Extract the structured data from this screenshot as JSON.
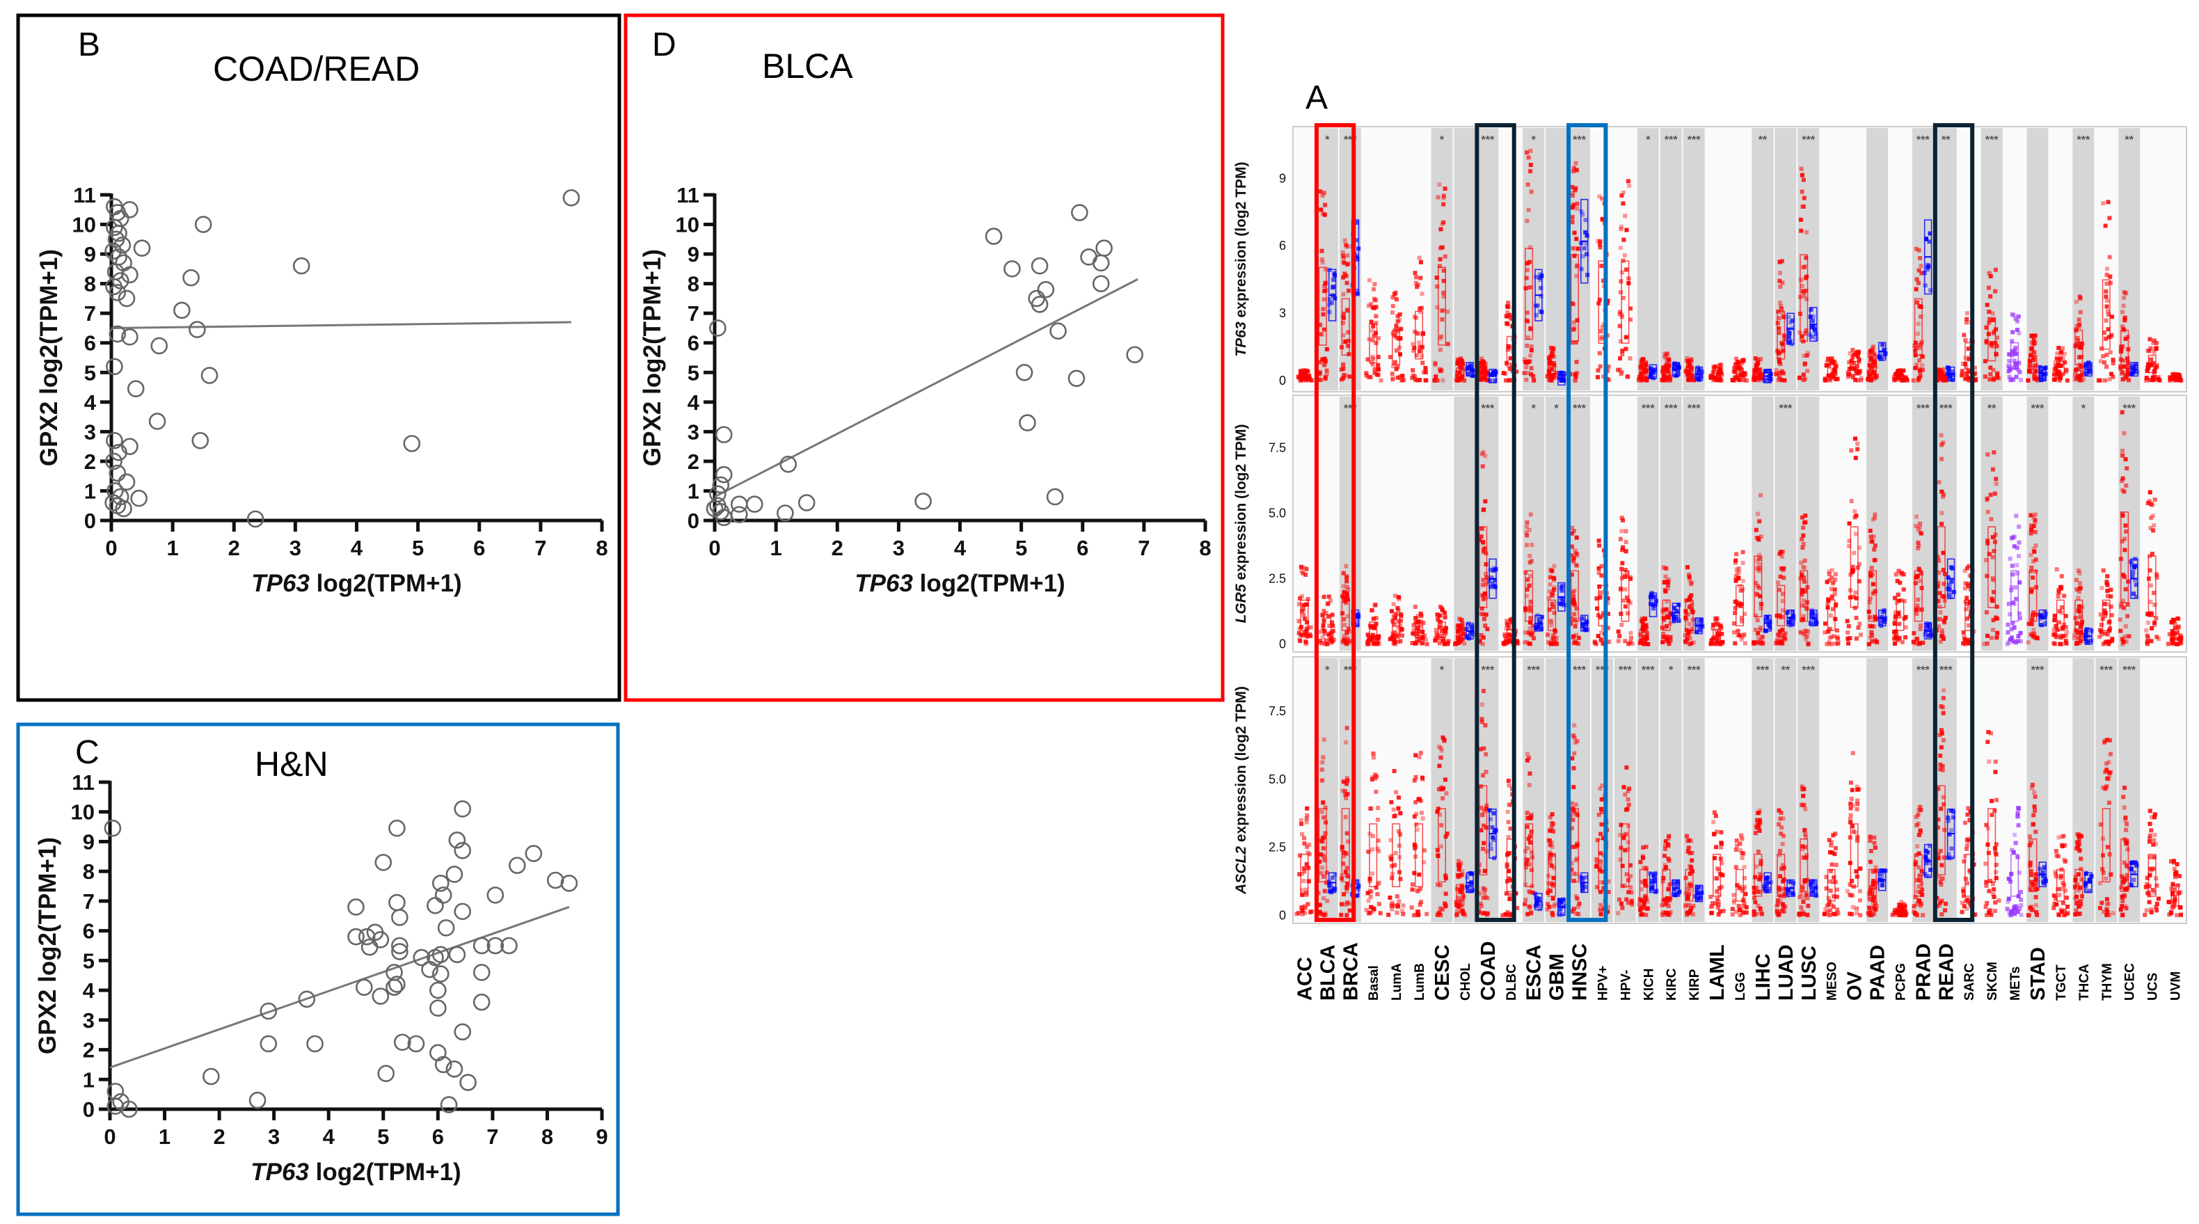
{
  "panels": {
    "B": {
      "letter": "B",
      "title": "COAD/READ",
      "frame_color": "#000000"
    },
    "C": {
      "letter": "C",
      "title": "H&N",
      "frame_color": "#0070C0"
    },
    "D": {
      "letter": "D",
      "title": "BLCA",
      "frame_color": "#FF0000"
    },
    "A": {
      "letter": "A"
    }
  },
  "chart_data": [
    {
      "panel": "A",
      "type": "box",
      "categories": [
        "ACC",
        "BLCA",
        "BRCA",
        "Basal",
        "LumA",
        "LumB",
        "CESC",
        "CHOL",
        "COAD",
        "DLBC",
        "ESCA",
        "GBM",
        "HNSC",
        "HPV+",
        "HPV-",
        "KICH",
        "KIRC",
        "KIRP",
        "LAML",
        "LGG",
        "LIHC",
        "LUAD",
        "LUSC",
        "MESO",
        "OV",
        "PAAD",
        "PCPG",
        "PRAD",
        "READ",
        "SARC",
        "SKCM",
        "METs",
        "STAD",
        "TGCT",
        "THCA",
        "THYM",
        "UCEC",
        "UCS",
        "UVM"
      ],
      "highlights": [
        {
          "category": "BLCA",
          "color": "#FF0000"
        },
        {
          "category": "COAD",
          "color": "#0B2233"
        },
        {
          "category": "HNSC",
          "color": "#0070C0"
        },
        {
          "category": "READ",
          "color": "#0B2233"
        }
      ],
      "colors": {
        "tumor": "#FF0000",
        "normal": "#0000FF",
        "metastatic": "#9933FF"
      },
      "rows": [
        {
          "ylabel_gene": "TP63",
          "ylabel_unit": "expression (log2 TPM)",
          "yticks": [
            "0",
            "3",
            "6",
            "9"
          ],
          "ytick_values": [
            0,
            3,
            6,
            9
          ],
          "ylim": [
            -0.5,
            11.3
          ],
          "significance": {
            "BLCA": "*",
            "BRCA": "***",
            "CESC": "*",
            "COAD": "***",
            "ESCA": "*",
            "HNSC": "***",
            "KICH": "*",
            "KIRC": "***",
            "KIRP": "***",
            "LIHC": "**",
            "LUSC": "***",
            "PRAD": "***",
            "READ": "**",
            "SKCM": "***",
            "THCA": "***",
            "UCEC": "**"
          },
          "tumor": [
            0.5,
            9,
            6.5,
            4.5,
            4,
            5.5,
            9,
            1,
            1,
            3.5,
            10.5,
            1.5,
            10,
            9.5,
            9.5,
            1,
            1.2,
            1,
            0.8,
            1,
            1,
            5.5,
            10,
            1,
            1.5,
            1.5,
            0.5,
            6.5,
            0.5,
            3,
            5,
            3,
            2,
            1.5,
            4,
            8,
            4,
            2,
            0.3
          ],
          "normal": [
            null,
            3.8,
            5.5,
            null,
            null,
            null,
            null,
            0.5,
            0.2,
            null,
            3.8,
            0.1,
            6.2,
            null,
            null,
            0.4,
            0.5,
            0.3,
            null,
            null,
            0.2,
            2.3,
            2.5,
            null,
            null,
            1.3,
            null,
            5.5,
            0.3,
            null,
            null,
            null,
            0.3,
            null,
            0.5,
            null,
            0.5,
            null,
            null
          ]
        },
        {
          "ylabel_gene": "LGR5",
          "ylabel_unit": "expression (log2 TPM)",
          "yticks": [
            "0",
            "2.5",
            "5.0",
            "7.5"
          ],
          "ytick_values": [
            0,
            2.5,
            5,
            7.5
          ],
          "ylim": [
            -0.3,
            9.5
          ],
          "significance": {
            "BRCA": "***",
            "COAD": "***",
            "ESCA": "*",
            "GBM": "*",
            "HNSC": "***",
            "KICH": "***",
            "KIRC": "***",
            "KIRP": "***",
            "LUAD": "***",
            "PRAD": "***",
            "READ": "***",
            "SKCM": "**",
            "STAD": "***",
            "THCA": "*",
            "UCEC": "***"
          },
          "tumor": [
            3,
            2,
            3,
            1.5,
            2,
            1.5,
            1.5,
            1,
            8,
            1,
            5,
            3,
            5,
            4,
            5,
            1,
            3,
            3,
            1,
            4,
            6,
            4,
            5,
            3,
            8,
            5,
            3,
            5,
            8,
            3,
            8,
            5,
            5,
            3,
            3,
            3,
            9,
            6,
            1
          ],
          "normal": [
            null,
            null,
            1,
            null,
            null,
            null,
            null,
            0.5,
            2.5,
            null,
            0.8,
            1.8,
            0.8,
            null,
            null,
            1.5,
            1.2,
            0.7,
            null,
            null,
            0.8,
            1,
            1,
            null,
            null,
            1,
            null,
            0.5,
            2.5,
            null,
            null,
            null,
            1,
            null,
            0.3,
            null,
            2.5,
            null,
            null
          ]
        },
        {
          "ylabel_gene": "ASCL2",
          "ylabel_unit": "expression (log2 TPM)",
          "yticks": [
            "0",
            "2.5",
            "5.0",
            "7.5"
          ],
          "ytick_values": [
            0,
            2.5,
            5,
            7.5
          ],
          "ylim": [
            -0.3,
            9.5
          ],
          "significance": {
            "BLCA": "*",
            "BRCA": "***",
            "CESC": "*",
            "COAD": "***",
            "ESCA": "***",
            "HNSC": "***",
            "HPV+": "***",
            "HPV-": "***",
            "KICH": "***",
            "KIRC": "*",
            "KIRP": "***",
            "LIHC": "***",
            "LUAD": "**",
            "LUSC": "***",
            "PRAD": "***",
            "READ": "***",
            "STAD": "***",
            "THYM": "***",
            "UCEC": "***"
          },
          "tumor": [
            4,
            7,
            7,
            6,
            6,
            6,
            7,
            2,
            8.5,
            5,
            6,
            4,
            7,
            5,
            6,
            3,
            3,
            3,
            4,
            3,
            4,
            4,
            5,
            3,
            6,
            3,
            0.5,
            4,
            8.5,
            4,
            7,
            4,
            5,
            3,
            3,
            7,
            5,
            4,
            2
          ],
          "normal": [
            null,
            1.2,
            1,
            null,
            null,
            null,
            null,
            1.2,
            3,
            null,
            0.5,
            0.3,
            1.2,
            null,
            null,
            1.2,
            1,
            0.8,
            null,
            null,
            1.2,
            1,
            1,
            null,
            null,
            1.3,
            null,
            2,
            3,
            null,
            null,
            null,
            1.5,
            null,
            1.2,
            null,
            1.5,
            null,
            null
          ]
        }
      ]
    },
    {
      "panel": "B",
      "type": "scatter",
      "xlabel_gene": "TP63",
      "xlabel_unit": "log2(TPM+1)",
      "ylabel": "GPX2 log2(TPM+1)",
      "xlim": [
        0,
        8
      ],
      "ylim": [
        0,
        11
      ],
      "xticks": [
        "0",
        "1",
        "2",
        "3",
        "4",
        "5",
        "6",
        "7",
        "8"
      ],
      "yticks": [
        "0",
        "1",
        "2",
        "3",
        "4",
        "5",
        "6",
        "7",
        "8",
        "9",
        "10",
        "11"
      ],
      "points": [
        [
          7.5,
          10.9
        ],
        [
          1.5,
          10
        ],
        [
          3.1,
          8.6
        ],
        [
          1.3,
          8.2
        ],
        [
          1.15,
          7.1
        ],
        [
          1.4,
          6.45
        ],
        [
          0.78,
          5.9
        ],
        [
          1.6,
          4.9
        ],
        [
          0.4,
          4.45
        ],
        [
          0.75,
          3.35
        ],
        [
          1.45,
          2.7
        ],
        [
          4.9,
          2.6
        ],
        [
          2.35,
          0.05
        ],
        [
          0.5,
          9.2
        ],
        [
          0.3,
          10.5
        ],
        [
          0.45,
          0.75
        ],
        [
          0.25,
          1.3
        ],
        [
          0.3,
          2.5
        ],
        [
          0.3,
          6.2
        ],
        [
          0.25,
          7.5
        ],
        [
          0.3,
          8.3
        ],
        [
          0.05,
          5.2
        ],
        [
          0.1,
          6.3
        ],
        [
          0.05,
          10.6
        ],
        [
          0.1,
          10.4
        ],
        [
          0.15,
          10.2
        ],
        [
          0.05,
          9.9
        ],
        [
          0.12,
          9.7
        ],
        [
          0.08,
          9.5
        ],
        [
          0.18,
          9.3
        ],
        [
          0.03,
          9.1
        ],
        [
          0.12,
          8.9
        ],
        [
          0.2,
          8.7
        ],
        [
          0.07,
          8.4
        ],
        [
          0.15,
          8.1
        ],
        [
          0.04,
          7.9
        ],
        [
          0.1,
          7.7
        ],
        [
          0.05,
          2.7
        ],
        [
          0.12,
          2.3
        ],
        [
          0.04,
          2.0
        ],
        [
          0.1,
          1.6
        ],
        [
          0.06,
          1.0
        ],
        [
          0.15,
          0.8
        ],
        [
          0.03,
          0.6
        ],
        [
          0.1,
          0.5
        ],
        [
          0.2,
          0.4
        ]
      ],
      "fit_line": [
        [
          0,
          6.5
        ],
        [
          7.5,
          6.7
        ]
      ]
    },
    {
      "panel": "D",
      "type": "scatter",
      "xlabel_gene": "TP63",
      "xlabel_unit": "log2(TPM+1)",
      "ylabel": "GPX2 log2(TPM+1)",
      "xlim": [
        0,
        8
      ],
      "ylim": [
        0,
        11
      ],
      "xticks": [
        "0",
        "1",
        "2",
        "3",
        "4",
        "5",
        "6",
        "7",
        "8"
      ],
      "yticks": [
        "0",
        "1",
        "2",
        "3",
        "4",
        "5",
        "6",
        "7",
        "8",
        "9",
        "10",
        "11"
      ],
      "points": [
        [
          5.95,
          10.4
        ],
        [
          4.55,
          9.6
        ],
        [
          4.85,
          8.5
        ],
        [
          5.3,
          8.6
        ],
        [
          6.1,
          8.9
        ],
        [
          6.35,
          9.2
        ],
        [
          6.3,
          8.7
        ],
        [
          6.3,
          8.0
        ],
        [
          5.4,
          7.8
        ],
        [
          5.25,
          7.5
        ],
        [
          5.3,
          7.3
        ],
        [
          5.6,
          6.4
        ],
        [
          6.85,
          5.6
        ],
        [
          5.05,
          5.0
        ],
        [
          5.9,
          4.8
        ],
        [
          5.1,
          3.3
        ],
        [
          5.55,
          0.8
        ],
        [
          3.4,
          0.65
        ],
        [
          1.5,
          0.6
        ],
        [
          1.2,
          1.9
        ],
        [
          1.15,
          0.25
        ],
        [
          0.65,
          0.55
        ],
        [
          0.4,
          0.55
        ],
        [
          0.4,
          0.2
        ],
        [
          0.15,
          2.9
        ],
        [
          0.15,
          1.55
        ],
        [
          0.05,
          6.5
        ],
        [
          0.1,
          1.2
        ],
        [
          0.05,
          0.9
        ],
        [
          0.05,
          0.5
        ],
        [
          0.1,
          0.3
        ],
        [
          0.15,
          0.1
        ],
        [
          0.0,
          0.4
        ]
      ],
      "fit_line": [
        [
          0,
          0.8
        ],
        [
          6.9,
          8.15
        ]
      ]
    },
    {
      "panel": "C",
      "type": "scatter",
      "xlabel_gene": "TP63",
      "xlabel_unit": "log2(TPM+1)",
      "ylabel": "GPX2 log2(TPM+1)",
      "xlim": [
        0,
        9
      ],
      "ylim": [
        0,
        11
      ],
      "xticks": [
        "0",
        "1",
        "2",
        "3",
        "4",
        "5",
        "6",
        "7",
        "8",
        "9"
      ],
      "yticks": [
        "0",
        "1",
        "2",
        "3",
        "4",
        "5",
        "6",
        "7",
        "8",
        "9",
        "10",
        "11"
      ],
      "points": [
        [
          0.05,
          9.45
        ],
        [
          0.1,
          0.6
        ],
        [
          0.1,
          0.1
        ],
        [
          0.2,
          0.25
        ],
        [
          0.35,
          0.0
        ],
        [
          1.85,
          1.1
        ],
        [
          2.7,
          0.3
        ],
        [
          2.9,
          3.3
        ],
        [
          2.9,
          2.2
        ],
        [
          3.6,
          3.7
        ],
        [
          3.75,
          2.2
        ],
        [
          4.5,
          6.8
        ],
        [
          4.5,
          5.8
        ],
        [
          4.7,
          5.8
        ],
        [
          4.75,
          5.45
        ],
        [
          4.85,
          5.95
        ],
        [
          4.95,
          5.7
        ],
        [
          4.65,
          4.1
        ],
        [
          4.95,
          3.8
        ],
        [
          5.0,
          8.3
        ],
        [
          5.05,
          1.2
        ],
        [
          5.2,
          4.1
        ],
        [
          5.25,
          4.2
        ],
        [
          5.2,
          4.6
        ],
        [
          5.25,
          9.45
        ],
        [
          5.25,
          6.95
        ],
        [
          5.3,
          6.45
        ],
        [
          5.3,
          5.5
        ],
        [
          5.3,
          5.3
        ],
        [
          5.35,
          2.25
        ],
        [
          5.6,
          2.2
        ],
        [
          5.7,
          5.1
        ],
        [
          5.85,
          4.7
        ],
        [
          5.95,
          5.1
        ],
        [
          5.95,
          6.85
        ],
        [
          6.0,
          4.0
        ],
        [
          6.0,
          3.4
        ],
        [
          6.0,
          1.9
        ],
        [
          6.05,
          7.6
        ],
        [
          6.1,
          7.2
        ],
        [
          6.05,
          5.2
        ],
        [
          6.05,
          4.55
        ],
        [
          6.1,
          1.5
        ],
        [
          6.15,
          6.1
        ],
        [
          6.3,
          7.9
        ],
        [
          6.3,
          1.35
        ],
        [
          6.35,
          5.2
        ],
        [
          6.35,
          9.05
        ],
        [
          6.45,
          10.1
        ],
        [
          6.45,
          8.7
        ],
        [
          6.45,
          6.65
        ],
        [
          6.45,
          2.6
        ],
        [
          6.55,
          0.9
        ],
        [
          6.2,
          0.15
        ],
        [
          6.8,
          5.5
        ],
        [
          6.8,
          4.6
        ],
        [
          6.8,
          3.6
        ],
        [
          7.05,
          7.2
        ],
        [
          7.05,
          5.5
        ],
        [
          7.3,
          5.5
        ],
        [
          7.45,
          8.2
        ],
        [
          7.75,
          8.6
        ],
        [
          8.15,
          7.7
        ],
        [
          8.4,
          7.6
        ]
      ],
      "fit_line": [
        [
          0,
          1.4
        ],
        [
          8.4,
          6.8
        ]
      ]
    }
  ]
}
